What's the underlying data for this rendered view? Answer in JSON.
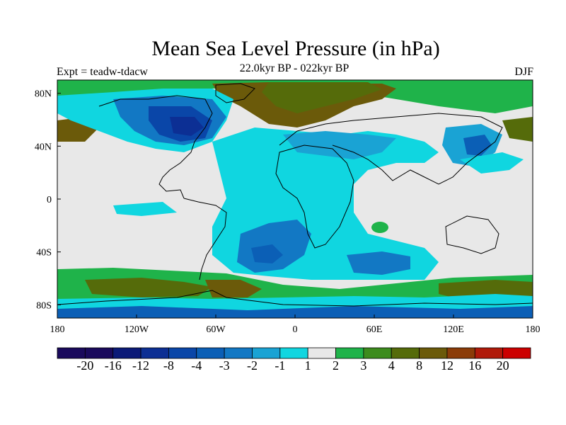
{
  "header": {
    "title": "Mean Sea Level Pressure (in hPa)",
    "subtitle": "22.0kyr BP - 022kyr BP",
    "left_label": "Expt = teadw-tdacw",
    "right_label": "DJF"
  },
  "map": {
    "lon_range": [
      -180,
      180
    ],
    "lat_range": [
      -90,
      90
    ],
    "x_ticks": [
      {
        "value": -180,
        "label": "180"
      },
      {
        "value": -120,
        "label": "120W"
      },
      {
        "value": -60,
        "label": "60W"
      },
      {
        "value": 0,
        "label": "0"
      },
      {
        "value": 60,
        "label": "60E"
      },
      {
        "value": 120,
        "label": "120E"
      },
      {
        "value": 180,
        "label": "180"
      }
    ],
    "y_ticks": [
      {
        "value": 80,
        "label": "80N"
      },
      {
        "value": 40,
        "label": "40N"
      },
      {
        "value": 0,
        "label": "0"
      },
      {
        "value": -40,
        "label": "40S"
      },
      {
        "value": -80,
        "label": "80S"
      }
    ],
    "background_color": "#e8e8e8"
  },
  "colorbar": {
    "labels": [
      "-20",
      "-16",
      "-12",
      "-8",
      "-4",
      "-3",
      "-2",
      "-1",
      "1",
      "2",
      "3",
      "4",
      "8",
      "12",
      "16",
      "20"
    ],
    "colors": [
      "#1a0a5c",
      "#0b1a78",
      "#0c2f94",
      "#0a46a8",
      "#0b5fb6",
      "#1278c4",
      "#1aa3d4",
      "#10d6e0",
      "#e8e8e8",
      "#1fb34a",
      "#3d8c1e",
      "#556b0a",
      "#6b5a0a",
      "#8b3c08",
      "#b01a0a",
      "#cc0000"
    ]
  }
}
